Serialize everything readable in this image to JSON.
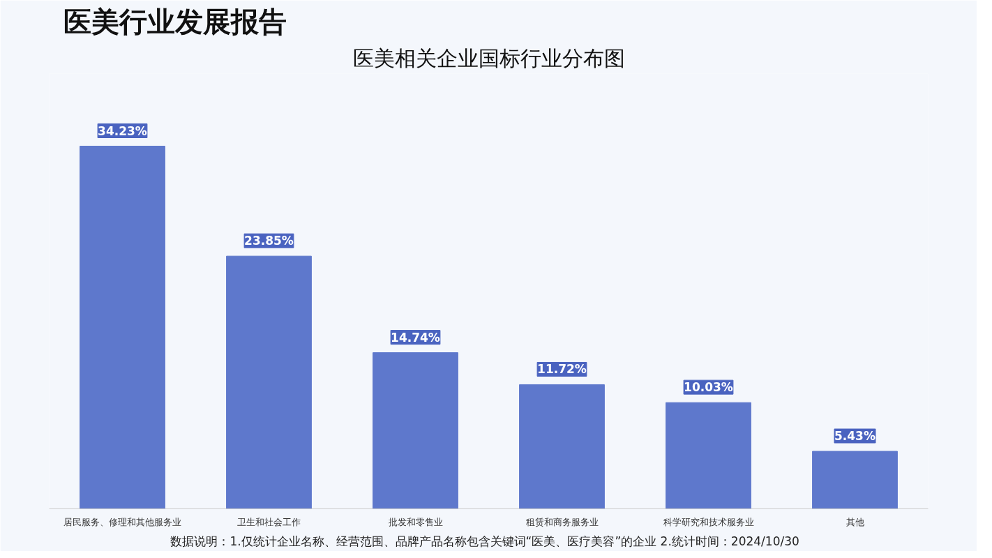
{
  "chart_data": {
    "type": "bar",
    "title": "医美行业发展报告",
    "subtitle": "医美相关企业国标行业分布图",
    "categories": [
      "居民服务、修理和其他服务业",
      "卫生和社会工作",
      "批发和零售业",
      "租赁和商务服务业",
      "科学研究和技术服务业",
      "其他"
    ],
    "values": [
      34.23,
      23.85,
      14.74,
      11.72,
      10.03,
      5.43
    ],
    "value_labels": [
      "34.23%",
      "23.85%",
      "14.74%",
      "11.72%",
      "10.03%",
      "5.43%"
    ],
    "color": "#5e78cc",
    "annotations": [
      "数据说明：1.仅统计企业名称、经营范围、品牌产品名称包含关键词“医美、医疗美容”的企业   2.统计时间：2024/10/30"
    ],
    "tick_labels": "x",
    "grid": false
  }
}
